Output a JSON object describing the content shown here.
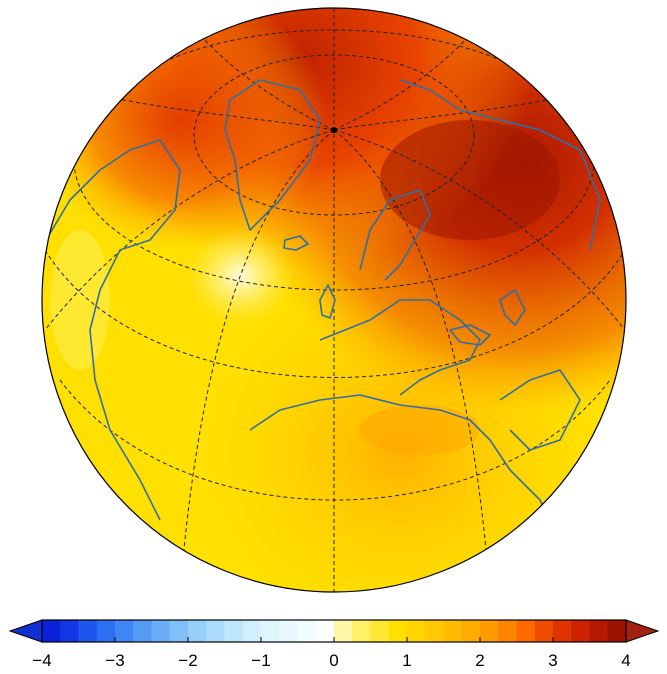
{
  "map": {
    "projection": "orthographic",
    "center": "North Atlantic / Europe",
    "colors": {
      "background": "#ffffff",
      "coastline": "#2f6fa6",
      "graticule": "#222222",
      "outline": "#000000"
    }
  },
  "colorbar": {
    "ticks": [
      "-4",
      "-3",
      "-2",
      "-1",
      "0",
      "1",
      "2",
      "3",
      "4"
    ],
    "min": -4,
    "max": 4,
    "step": 0.25,
    "colors": [
      "#0a22d8",
      "#1238e6",
      "#1e55ee",
      "#2d6ff2",
      "#3f86f4",
      "#549bf6",
      "#6aaef8",
      "#80c0f9",
      "#96cffa",
      "#abdcfb",
      "#bfe7fc",
      "#d0f0fd",
      "#ddf6fe",
      "#e8fafe",
      "#f2fdff",
      "#ffffff",
      "#fff7a8",
      "#fff066",
      "#ffe833",
      "#ffe000",
      "#ffd400",
      "#ffc800",
      "#ffbb00",
      "#ffac00",
      "#ff9a00",
      "#ff8400",
      "#ff6a00",
      "#f04c00",
      "#e03400",
      "#cc2200",
      "#b51800",
      "#9a1200"
    ],
    "under_color": "#1230d0",
    "over_color": "#a0220f"
  }
}
